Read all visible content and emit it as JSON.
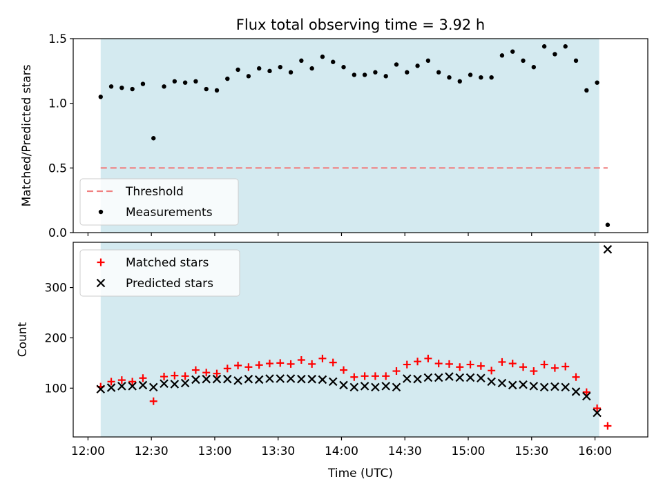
{
  "chart_data": [
    {
      "type": "scatter",
      "title": "Flux total observing time = 3.92 h",
      "ylabel": "Matched/Predicted stars",
      "ylim": [
        0,
        1.5
      ],
      "y_ticks": [
        0.0,
        0.5,
        1.0,
        1.5
      ],
      "y_tick_labels": [
        "0.0",
        "0.5",
        "1.0",
        "1.5"
      ],
      "xlim": [
        "11:53",
        "16:25"
      ],
      "x_ticks": [
        "12:00",
        "12:30",
        "13:00",
        "13:30",
        "14:00",
        "14:30",
        "15:00",
        "15:30",
        "16:00"
      ],
      "shaded_span": [
        "12:06",
        "16:02"
      ],
      "shade_color": "#d4eaf0",
      "grid": false,
      "legend_position": "lower-left",
      "threshold": {
        "name": "Threshold",
        "y": 0.5,
        "x_range": [
          "12:06",
          "16:06"
        ],
        "color": "#f08080",
        "style": "dashed"
      },
      "series": [
        {
          "name": "Measurements",
          "marker": "dot",
          "color": "#000000",
          "x": [
            "12:06",
            "12:11",
            "12:16",
            "12:21",
            "12:26",
            "12:31",
            "12:36",
            "12:41",
            "12:46",
            "12:51",
            "12:56",
            "13:01",
            "13:06",
            "13:11",
            "13:16",
            "13:21",
            "13:26",
            "13:31",
            "13:36",
            "13:41",
            "13:46",
            "13:51",
            "13:56",
            "14:01",
            "14:06",
            "14:11",
            "14:16",
            "14:21",
            "14:26",
            "14:31",
            "14:36",
            "14:41",
            "14:46",
            "14:51",
            "14:56",
            "15:01",
            "15:06",
            "15:11",
            "15:16",
            "15:21",
            "15:26",
            "15:31",
            "15:36",
            "15:41",
            "15:46",
            "15:51",
            "15:56",
            "16:01",
            "16:06"
          ],
          "y": [
            1.05,
            1.13,
            1.12,
            1.11,
            1.15,
            0.73,
            1.13,
            1.17,
            1.16,
            1.17,
            1.11,
            1.1,
            1.19,
            1.26,
            1.21,
            1.27,
            1.25,
            1.28,
            1.24,
            1.33,
            1.27,
            1.36,
            1.32,
            1.28,
            1.22,
            1.22,
            1.24,
            1.21,
            1.3,
            1.24,
            1.29,
            1.33,
            1.24,
            1.2,
            1.17,
            1.22,
            1.2,
            1.2,
            1.37,
            1.4,
            1.33,
            1.28,
            1.44,
            1.38,
            1.44,
            1.33,
            1.1,
            1.16,
            0.06
          ]
        }
      ]
    },
    {
      "type": "scatter",
      "title": "",
      "xlabel": "Time (UTC)",
      "ylabel": "Count",
      "ylim": [
        3,
        390
      ],
      "y_ticks": [
        100,
        200,
        300
      ],
      "y_tick_labels": [
        "100",
        "200",
        "300"
      ],
      "xlim": [
        "11:53",
        "16:25"
      ],
      "x_ticks": [
        "12:00",
        "12:30",
        "13:00",
        "13:30",
        "14:00",
        "14:30",
        "15:00",
        "15:30",
        "16:00"
      ],
      "x_tick_labels": [
        "12:00",
        "12:30",
        "13:00",
        "13:30",
        "14:00",
        "14:30",
        "15:00",
        "15:30",
        "16:00"
      ],
      "shaded_span": [
        "12:06",
        "16:02"
      ],
      "shade_color": "#d4eaf0",
      "grid": false,
      "legend_position": "upper-left",
      "series": [
        {
          "name": "Matched stars",
          "marker": "plus",
          "color": "#ff0000",
          "x": [
            "12:06",
            "12:11",
            "12:16",
            "12:21",
            "12:26",
            "12:31",
            "12:36",
            "12:41",
            "12:46",
            "12:51",
            "12:56",
            "13:01",
            "13:06",
            "13:11",
            "13:16",
            "13:21",
            "13:26",
            "13:31",
            "13:36",
            "13:41",
            "13:46",
            "13:51",
            "13:56",
            "14:01",
            "14:06",
            "14:11",
            "14:16",
            "14:21",
            "14:26",
            "14:31",
            "14:36",
            "14:41",
            "14:46",
            "14:51",
            "14:56",
            "15:01",
            "15:06",
            "15:11",
            "15:16",
            "15:21",
            "15:26",
            "15:31",
            "15:36",
            "15:41",
            "15:46",
            "15:51",
            "15:56",
            "16:01",
            "16:06"
          ],
          "y": [
            103,
            113,
            116,
            113,
            120,
            74,
            123,
            125,
            124,
            136,
            131,
            129,
            139,
            145,
            142,
            146,
            149,
            150,
            148,
            156,
            148,
            159,
            151,
            136,
            122,
            124,
            124,
            124,
            134,
            147,
            153,
            159,
            149,
            148,
            142,
            147,
            144,
            135,
            152,
            149,
            142,
            134,
            147,
            140,
            143,
            122,
            92,
            60,
            25
          ]
        },
        {
          "name": "Predicted stars",
          "marker": "x",
          "color": "#000000",
          "x": [
            "12:06",
            "12:11",
            "12:16",
            "12:21",
            "12:26",
            "12:31",
            "12:36",
            "12:41",
            "12:46",
            "12:51",
            "12:56",
            "13:01",
            "13:06",
            "13:11",
            "13:16",
            "13:21",
            "13:26",
            "13:31",
            "13:36",
            "13:41",
            "13:46",
            "13:51",
            "13:56",
            "14:01",
            "14:06",
            "14:11",
            "14:16",
            "14:21",
            "14:26",
            "14:31",
            "14:36",
            "14:41",
            "14:46",
            "14:51",
            "14:56",
            "15:01",
            "15:06",
            "15:11",
            "15:16",
            "15:21",
            "15:26",
            "15:31",
            "15:36",
            "15:41",
            "15:46",
            "15:51",
            "15:56",
            "16:01",
            "16:06"
          ],
          "y": [
            98,
            101,
            104,
            104,
            106,
            102,
            109,
            108,
            110,
            117,
            118,
            118,
            118,
            115,
            118,
            117,
            119,
            119,
            119,
            118,
            118,
            117,
            113,
            106,
            102,
            104,
            102,
            104,
            102,
            119,
            118,
            121,
            121,
            123,
            121,
            121,
            120,
            113,
            110,
            106,
            107,
            104,
            102,
            103,
            102,
            93,
            84,
            51,
            376
          ]
        }
      ]
    }
  ]
}
